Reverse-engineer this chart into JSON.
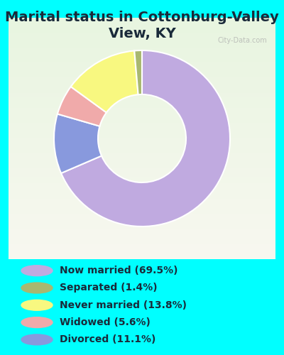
{
  "title": "Marital status in Cottonburg-Valley\nView, KY",
  "background_color": "#00FFFF",
  "chart_bg_top": "#f5f5ee",
  "chart_bg_bottom": "#d0e8d0",
  "wedge_values": [
    69.5,
    11.1,
    5.6,
    13.8,
    1.4
  ],
  "wedge_colors": [
    "#c0aae0",
    "#8899dd",
    "#f0aaaa",
    "#f8f880",
    "#a8b870"
  ],
  "legend_labels": [
    "Now married (69.5%)",
    "Separated (1.4%)",
    "Never married (13.8%)",
    "Widowed (5.6%)",
    "Divorced (11.1%)"
  ],
  "legend_colors": [
    "#c0aae0",
    "#a8b870",
    "#f8f880",
    "#f0aaaa",
    "#8899dd"
  ],
  "watermark": "City-Data.com",
  "title_fontsize": 14,
  "title_color": "#1a2a3a",
  "legend_fontsize": 10
}
